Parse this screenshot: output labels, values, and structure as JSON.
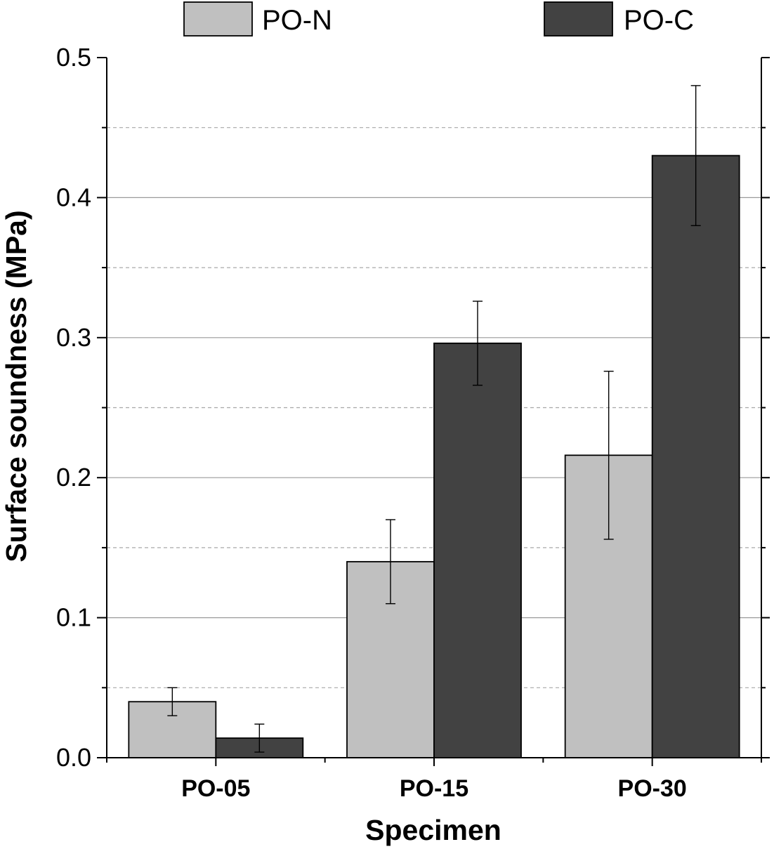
{
  "chart_data": {
    "type": "bar",
    "xlabel": "Specimen",
    "ylabel": "Surface soundness (MPa)",
    "categories": [
      "PO-05",
      "PO-15",
      "PO-30"
    ],
    "ylim": [
      0,
      0.5
    ],
    "yticks": [
      "0.0",
      "0.1",
      "0.2",
      "0.3",
      "0.4",
      "0.5"
    ],
    "grid": {
      "major": true,
      "minor_dashed": true
    },
    "legend_position": "top",
    "series": [
      {
        "name": "PO-N",
        "color": "#c0c0c0",
        "values": [
          0.04,
          0.14,
          0.216
        ],
        "errors": [
          0.01,
          0.03,
          0.06
        ]
      },
      {
        "name": "PO-C",
        "color": "#424242",
        "values": [
          0.014,
          0.296,
          0.43
        ],
        "errors": [
          0.01,
          0.03,
          0.05
        ]
      }
    ]
  }
}
